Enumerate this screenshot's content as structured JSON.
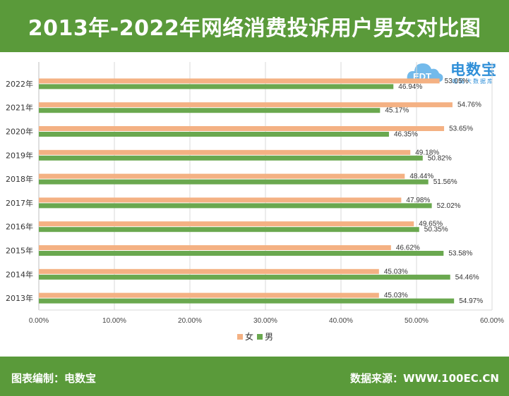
{
  "header": {
    "title": "2013年-2022年网络消费投诉用户男女对比图"
  },
  "footer": {
    "left": "图表编制：电数宝",
    "right": "数据来源：WWW.100EC.CN"
  },
  "logo": {
    "name": "电数宝",
    "subtitle": "电商大数据库",
    "mark": "EDT",
    "color": "#2f8fd8"
  },
  "chart_data": {
    "type": "bar",
    "orientation": "horizontal",
    "categories": [
      "2022年",
      "2021年",
      "2020年",
      "2019年",
      "2018年",
      "2017年",
      "2016年",
      "2015年",
      "2014年",
      "2013年"
    ],
    "series": [
      {
        "name": "女",
        "color": "#f4b183",
        "values": [
          53.05,
          54.76,
          53.65,
          49.18,
          48.44,
          47.98,
          49.65,
          46.62,
          45.03,
          45.03
        ],
        "labels": [
          "53.05%",
          "54.76%",
          "53.65%",
          "49.18%",
          "48.44%",
          "47.98%",
          "49.65%",
          "46.62%",
          "45.03%",
          "45.03%"
        ]
      },
      {
        "name": "男",
        "color": "#6aa84f",
        "values": [
          46.94,
          45.17,
          46.35,
          50.82,
          51.56,
          52.02,
          50.35,
          53.58,
          54.46,
          54.97
        ],
        "labels": [
          "46.94%",
          "45.17%",
          "46.35%",
          "50.82%",
          "51.56%",
          "52.02%",
          "50.35%",
          "53.58%",
          "54.46%",
          "54.97%"
        ]
      }
    ],
    "xlim": [
      0,
      60
    ],
    "xticks": [
      "0.00%",
      "10.00%",
      "20.00%",
      "30.00%",
      "40.00%",
      "50.00%",
      "60.00%"
    ],
    "grid": true,
    "legend": "bottom-center"
  }
}
